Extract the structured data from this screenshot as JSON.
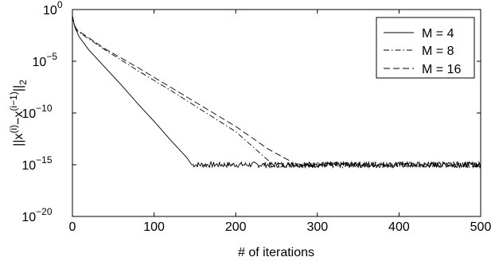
{
  "chart_data": {
    "type": "line",
    "xlabel": "# of iterations",
    "ylabel_base": "||x",
    "ylabel_sup1": "(i)",
    "ylabel_mid": "−x",
    "ylabel_sup2": "(i−1)",
    "ylabel_tail": "||",
    "ylabel_sub": "2",
    "x_range": [
      0,
      500
    ],
    "y_range": [
      1e-20,
      1
    ],
    "y_scale": "log",
    "x_ticks": [
      0,
      100,
      200,
      300,
      400,
      500
    ],
    "x_tick_labels": [
      "0",
      "100",
      "200",
      "300",
      "400",
      "500"
    ],
    "y_ticks": [
      0,
      -5,
      -10,
      -15,
      -20
    ],
    "y_tick_mantissa": [
      "10",
      "10",
      "10",
      "10",
      "10"
    ],
    "y_tick_exponent": [
      "0",
      "−5",
      "−10",
      "−15",
      "−20"
    ],
    "grid": false,
    "legend_position": "top-right",
    "series": [
      {
        "name": "M = 4",
        "style": "solid",
        "points_log10": [
          [
            0,
            -0.8
          ],
          [
            1,
            -1.0
          ],
          [
            3,
            -1.7
          ],
          [
            8,
            -2.6
          ],
          [
            20,
            -3.9
          ],
          [
            40,
            -5.6
          ],
          [
            60,
            -7.3
          ],
          [
            80,
            -9.1
          ],
          [
            100,
            -10.8
          ],
          [
            120,
            -12.6
          ],
          [
            140,
            -14.3
          ],
          [
            146,
            -15.0
          ],
          [
            500,
            -15.0
          ]
        ],
        "noise_start": 146,
        "noise_level": -15.0
      },
      {
        "name": "M = 8",
        "style": "dashdot",
        "points_log10": [
          [
            0,
            -0.6
          ],
          [
            2,
            -1.4
          ],
          [
            5,
            -2.0
          ],
          [
            10,
            -2.3
          ],
          [
            40,
            -3.9
          ],
          [
            80,
            -5.9
          ],
          [
            120,
            -7.8
          ],
          [
            160,
            -9.8
          ],
          [
            200,
            -11.8
          ],
          [
            240,
            -14.6
          ],
          [
            500,
            -15.0
          ]
        ],
        "noise_start": 240,
        "noise_level": -15.0
      },
      {
        "name": "M = 16",
        "style": "dashed",
        "points_log10": [
          [
            0,
            -0.6
          ],
          [
            2,
            -1.4
          ],
          [
            5,
            -1.9
          ],
          [
            10,
            -2.2
          ],
          [
            40,
            -3.8
          ],
          [
            80,
            -5.6
          ],
          [
            120,
            -7.5
          ],
          [
            160,
            -9.4
          ],
          [
            200,
            -11.3
          ],
          [
            240,
            -13.5
          ],
          [
            268,
            -14.7
          ],
          [
            500,
            -15.0
          ]
        ],
        "noise_start": 268,
        "noise_level": -15.0
      }
    ]
  }
}
